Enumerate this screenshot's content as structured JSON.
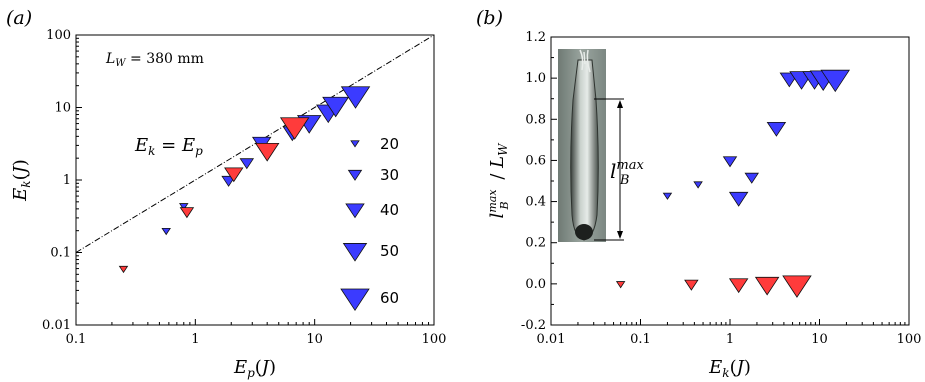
{
  "chart_data": [
    {
      "type": "scatter",
      "panel_label": "(a)",
      "xlabel": "E_p(J)",
      "ylabel": "E_k(J)",
      "x_scale": "log",
      "y_scale": "log",
      "xlim": [
        0.1,
        100
      ],
      "ylim": [
        0.01,
        100
      ],
      "x_ticks": [
        "0.1",
        "1",
        "10",
        "100"
      ],
      "y_ticks": [
        "0.01",
        "0.1",
        "1",
        "10",
        "100"
      ],
      "annotation_lw": "L_W = 380 mm",
      "reference_line_label": "E_k = E_p",
      "reference_line": "y = x",
      "size_legend": [
        {
          "label": "20",
          "value": 20
        },
        {
          "label": "30",
          "value": 30
        },
        {
          "label": "40",
          "value": 40
        },
        {
          "label": "50",
          "value": 50
        },
        {
          "label": "60",
          "value": 60
        }
      ],
      "series": [
        {
          "color": "#3b3bff",
          "points": [
            {
              "x": 0.57,
              "y": 0.2,
              "size": 20
            },
            {
              "x": 0.8,
              "y": 0.44,
              "size": 20
            },
            {
              "x": 1.9,
              "y": 1.0,
              "size": 30
            },
            {
              "x": 2.7,
              "y": 1.75,
              "size": 30
            },
            {
              "x": 3.6,
              "y": 3.3,
              "size": 40
            },
            {
              "x": 6.5,
              "y": 4.6,
              "size": 40
            },
            {
              "x": 9.0,
              "y": 6.3,
              "size": 50
            },
            {
              "x": 13.0,
              "y": 8.8,
              "size": 50
            },
            {
              "x": 15.0,
              "y": 11.0,
              "size": 55
            },
            {
              "x": 22.0,
              "y": 15.0,
              "size": 60
            }
          ]
        },
        {
          "color": "#ff3b3b",
          "points": [
            {
              "x": 0.25,
              "y": 0.06,
              "size": 20
            },
            {
              "x": 0.85,
              "y": 0.37,
              "size": 30
            },
            {
              "x": 2.1,
              "y": 1.25,
              "size": 40
            },
            {
              "x": 4.0,
              "y": 2.6,
              "size": 50
            },
            {
              "x": 6.8,
              "y": 5.6,
              "size": 60
            }
          ]
        }
      ]
    },
    {
      "type": "scatter",
      "panel_label": "(b)",
      "xlabel": "E_k(J)",
      "ylabel": "l_B^max / L_W",
      "x_scale": "log",
      "y_scale": "linear",
      "xlim": [
        0.01,
        100
      ],
      "ylim": [
        -0.2,
        1.2
      ],
      "x_ticks": [
        "0.01",
        "0.1",
        "1",
        "10",
        "100"
      ],
      "y_ticks": [
        "-0.2",
        "0.0",
        "0.2",
        "0.4",
        "0.6",
        "0.8",
        "1.0",
        "1.2"
      ],
      "inset_label": "l_B^max",
      "series": [
        {
          "color": "#3b3bff",
          "points": [
            {
              "x": 0.2,
              "y": 0.43,
              "size": 20
            },
            {
              "x": 0.44,
              "y": 0.485,
              "size": 20
            },
            {
              "x": 1.0,
              "y": 0.6,
              "size": 30
            },
            {
              "x": 1.25,
              "y": 0.42,
              "size": 40
            },
            {
              "x": 1.75,
              "y": 0.52,
              "size": 30
            },
            {
              "x": 3.3,
              "y": 0.76,
              "size": 40
            },
            {
              "x": 4.6,
              "y": 1.0,
              "size": 40
            },
            {
              "x": 6.3,
              "y": 1.0,
              "size": 50
            },
            {
              "x": 8.8,
              "y": 1.0,
              "size": 50
            },
            {
              "x": 11.0,
              "y": 1.0,
              "size": 55
            },
            {
              "x": 15.0,
              "y": 1.0,
              "size": 60
            }
          ]
        },
        {
          "color": "#ff3b3b",
          "points": [
            {
              "x": 0.06,
              "y": 0.0,
              "size": 20
            },
            {
              "x": 0.37,
              "y": 0.0,
              "size": 30
            },
            {
              "x": 1.25,
              "y": 0.0,
              "size": 40
            },
            {
              "x": 2.6,
              "y": 0.0,
              "size": 50
            },
            {
              "x": 5.6,
              "y": 0.0,
              "size": 60
            }
          ]
        }
      ]
    }
  ]
}
